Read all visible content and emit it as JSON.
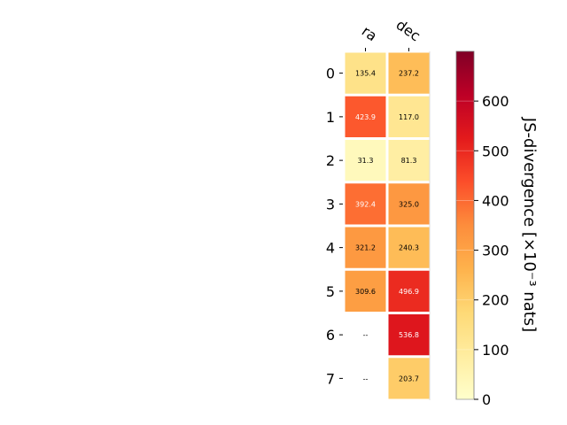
{
  "chart_data": {
    "type": "heatmap",
    "columns": [
      "ra",
      "dec"
    ],
    "rows": [
      "0",
      "1",
      "2",
      "3",
      "4",
      "5",
      "6",
      "7"
    ],
    "values": [
      [
        135.4,
        237.2
      ],
      [
        423.9,
        117.0
      ],
      [
        31.3,
        81.3
      ],
      [
        392.4,
        325.0
      ],
      [
        321.2,
        240.3
      ],
      [
        309.6,
        496.9
      ],
      [
        null,
        536.8
      ],
      [
        null,
        203.7
      ]
    ],
    "missing_label": "--",
    "colorbar": {
      "label": "JS-divergence [×10⁻³ nats]",
      "range": [
        0,
        700
      ],
      "ticks": [
        "0",
        "100",
        "200",
        "300",
        "400",
        "500",
        "600"
      ],
      "colormap": "YlOrRd"
    },
    "grid": false
  }
}
